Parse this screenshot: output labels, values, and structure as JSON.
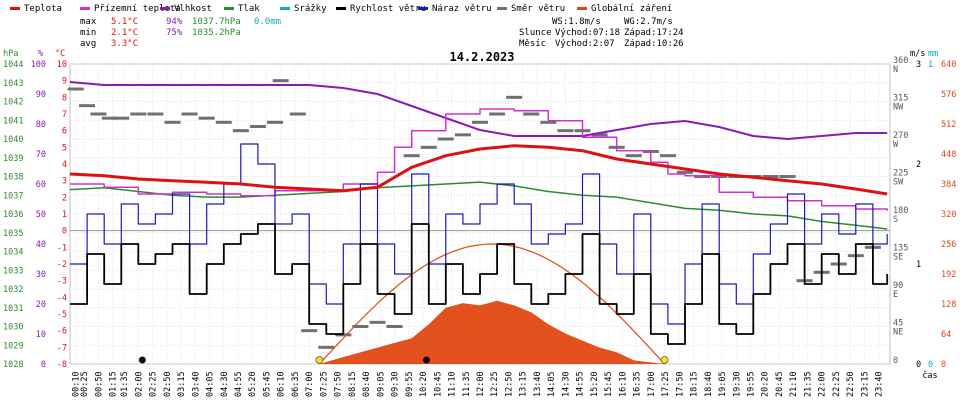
{
  "legend": [
    {
      "label": "Teplota",
      "color": "#dd1111"
    },
    {
      "label": "Přízemní teplota",
      "color": "#d030d0"
    },
    {
      "label": "Vlhkost",
      "color": "#8a19b6"
    },
    {
      "label": "Tlak",
      "color": "#2f8a2f"
    },
    {
      "label": "Srážky",
      "color": "#17a7c7"
    },
    {
      "label": "Rychlost větru",
      "color": "#000000"
    },
    {
      "label": "Náraz větru",
      "color": "#1a1ab4"
    },
    {
      "label": "Směr větru",
      "color": "#707070"
    },
    {
      "label": "Globální záření",
      "color": "#e04812"
    }
  ],
  "stats": {
    "max": {
      "label": "max",
      "temp": "5.1°C",
      "hum": "94%",
      "press": "1037.7hPa",
      "rain": "0.0mm"
    },
    "min": {
      "label": "min",
      "temp": "2.1°C",
      "hum": "75%",
      "press": "1035.2hPa"
    },
    "avg": {
      "label": "avg",
      "temp": "3.3°C"
    }
  },
  "wind_info": {
    "ws": "WS:1.8m/s",
    "wg": "WG:2.7m/s"
  },
  "sun_info": {
    "label": "Slunce",
    "rise": "Východ:07:18",
    "set": "Západ:17:24"
  },
  "moon_info": {
    "label": "Měsíc",
    "rise": "Východ:2:07",
    "set": "Západ:10:26"
  },
  "chart_data": {
    "type": "line",
    "title": "14.2.2023",
    "x_label": "čas",
    "x_ticks": [
      "00:10",
      "00:25",
      "00:50",
      "01:15",
      "01:35",
      "02:00",
      "02:25",
      "02:50",
      "03:15",
      "03:40",
      "04:05",
      "04:30",
      "04:55",
      "05:20",
      "05:45",
      "06:10",
      "06:35",
      "07:00",
      "07:25",
      "07:50",
      "08:15",
      "08:40",
      "09:05",
      "09:30",
      "09:55",
      "10:20",
      "10:45",
      "11:10",
      "11:35",
      "12:00",
      "12:25",
      "12:50",
      "13:15",
      "13:40",
      "14:05",
      "14:30",
      "14:55",
      "15:20",
      "15:45",
      "16:10",
      "16:35",
      "17:00",
      "17:25",
      "17:50",
      "18:15",
      "18:40",
      "19:05",
      "19:30",
      "19:55",
      "20:20",
      "20:45",
      "21:10",
      "21:35",
      "22:00",
      "22:25",
      "22:50",
      "23:15",
      "23:40"
    ],
    "axes": {
      "hpa": {
        "unit": "hPa",
        "min": 1028,
        "max": 1044,
        "ticks": [
          "1028",
          "1029",
          "1030",
          "1031",
          "1032",
          "1033",
          "1034",
          "1035",
          "1036",
          "1037",
          "1038",
          "1039",
          "1040",
          "1041",
          "1042",
          "1043",
          "1044"
        ]
      },
      "percent": {
        "unit": "%",
        "min": 0,
        "max": 100,
        "ticks": [
          "0",
          "10",
          "20",
          "30",
          "40",
          "50",
          "60",
          "70",
          "80",
          "90",
          "100"
        ]
      },
      "celsius": {
        "unit": "°C",
        "min": -8,
        "max": 10,
        "ticks": [
          "-8",
          "-7",
          "-6",
          "-5",
          "-4",
          "-3",
          "-2",
          "-1",
          "0",
          "1",
          "2",
          "3",
          "4",
          "5",
          "6",
          "7",
          "8",
          "9",
          "10"
        ]
      },
      "wind_dir": {
        "min": 0,
        "max": 360,
        "ticks": [
          "0",
          "45",
          "90",
          "135",
          "180",
          "225",
          "270",
          "315",
          "360"
        ],
        "names": [
          "",
          "NE",
          "E",
          "SE",
          "S",
          "SW",
          "W",
          "NW",
          "N"
        ]
      },
      "wind_speed": {
        "unit": "m/s",
        "min": 0,
        "max": 3,
        "ticks": [
          "0",
          "1",
          "2",
          "3"
        ]
      },
      "rain": {
        "unit": "mm",
        "min": 0,
        "max": 1,
        "ticks": [
          "0",
          "1"
        ]
      },
      "radiation": {
        "min": 0,
        "max": 640,
        "ticks": [
          "0",
          "64",
          "128",
          "192",
          "256",
          "320",
          "384",
          "448",
          "512",
          "576",
          "640"
        ]
      }
    },
    "series": [
      {
        "name": "Teplota",
        "unit": "°C",
        "color": "#dd1111",
        "x": [
          "00:00",
          "01:00",
          "02:00",
          "03:00",
          "04:00",
          "05:00",
          "06:00",
          "07:00",
          "08:00",
          "09:00",
          "10:00",
          "11:00",
          "12:00",
          "13:00",
          "14:00",
          "15:00",
          "16:00",
          "17:00",
          "18:00",
          "19:00",
          "20:00",
          "21:00",
          "22:00",
          "23:00",
          "23:55"
        ],
        "values": [
          3.4,
          3.3,
          3.1,
          3.0,
          2.9,
          2.8,
          2.6,
          2.5,
          2.4,
          2.6,
          3.8,
          4.5,
          4.9,
          5.1,
          5.0,
          4.8,
          4.3,
          4.0,
          3.7,
          3.4,
          3.2,
          3.0,
          2.8,
          2.5,
          2.2
        ]
      },
      {
        "name": "Přízemní teplota",
        "unit": "°C",
        "color": "#d030d0",
        "x": [
          "00:00",
          "01:00",
          "02:00",
          "03:00",
          "04:00",
          "05:00",
          "06:00",
          "07:00",
          "08:00",
          "09:00",
          "09:30",
          "10:00",
          "11:00",
          "12:00",
          "13:00",
          "14:00",
          "15:00",
          "16:00",
          "17:00",
          "17:30",
          "18:00",
          "19:00",
          "20:00",
          "21:00",
          "22:00",
          "23:00",
          "23:55"
        ],
        "values": [
          2.8,
          2.6,
          2.2,
          2.3,
          2.2,
          2.1,
          2.4,
          2.4,
          2.8,
          3.5,
          5.0,
          6.0,
          7.0,
          7.3,
          7.2,
          6.6,
          5.6,
          4.8,
          4.1,
          3.4,
          3.3,
          2.3,
          2.0,
          1.8,
          1.5,
          1.3,
          1.2
        ]
      },
      {
        "name": "Vlhkost",
        "unit": "%",
        "color": "#8a19b6",
        "x": [
          "00:00",
          "01:00",
          "02:00",
          "03:00",
          "04:00",
          "05:00",
          "06:00",
          "07:00",
          "08:00",
          "09:00",
          "10:00",
          "11:00",
          "12:00",
          "13:00",
          "14:00",
          "15:00",
          "16:00",
          "17:00",
          "18:00",
          "19:00",
          "20:00",
          "21:00",
          "22:00",
          "23:00",
          "23:55"
        ],
        "values": [
          94,
          93,
          93,
          93,
          93,
          93,
          93,
          93,
          92,
          90,
          86,
          82,
          78,
          76,
          76,
          76,
          78,
          80,
          81,
          79,
          76,
          75,
          76,
          77,
          77
        ]
      },
      {
        "name": "Tlak",
        "unit": "hPa",
        "color": "#2f8a2f",
        "x": [
          "00:00",
          "01:00",
          "02:00",
          "03:00",
          "04:00",
          "05:00",
          "06:00",
          "07:00",
          "08:00",
          "09:00",
          "10:00",
          "11:00",
          "12:00",
          "13:00",
          "14:00",
          "15:00",
          "16:00",
          "17:00",
          "18:00",
          "19:00",
          "20:00",
          "21:00",
          "22:00",
          "23:00",
          "23:55"
        ],
        "values": [
          1037.3,
          1037.4,
          1037.2,
          1037.0,
          1036.9,
          1036.9,
          1037.0,
          1037.1,
          1037.2,
          1037.4,
          1037.5,
          1037.6,
          1037.7,
          1037.5,
          1037.2,
          1037.0,
          1036.9,
          1036.6,
          1036.3,
          1036.2,
          1036.0,
          1035.9,
          1035.6,
          1035.4,
          1035.2
        ]
      },
      {
        "name": "Globální záření",
        "unit": "W/m2",
        "color": "#e04812",
        "kind": "area",
        "x": [
          "07:18",
          "08:00",
          "09:00",
          "10:00",
          "10:30",
          "11:00",
          "11:30",
          "12:00",
          "12:30",
          "13:00",
          "13:30",
          "14:00",
          "14:30",
          "15:00",
          "15:30",
          "16:00",
          "16:30",
          "17:24"
        ],
        "values": [
          0,
          15,
          35,
          55,
          85,
          120,
          130,
          125,
          135,
          125,
          110,
          85,
          65,
          50,
          35,
          25,
          8,
          0
        ]
      },
      {
        "name": "Rychlost větru",
        "unit": "m/s",
        "color": "#000000",
        "x": [
          "00:00",
          "00:30",
          "01:00",
          "01:30",
          "02:00",
          "02:30",
          "03:00",
          "03:30",
          "04:00",
          "04:30",
          "05:00",
          "05:30",
          "06:00",
          "06:30",
          "07:00",
          "07:30",
          "08:00",
          "08:30",
          "09:00",
          "09:30",
          "10:00",
          "10:30",
          "11:00",
          "11:30",
          "12:00",
          "12:30",
          "13:00",
          "13:30",
          "14:00",
          "14:30",
          "15:00",
          "15:30",
          "16:00",
          "16:30",
          "17:00",
          "17:30",
          "18:00",
          "18:30",
          "19:00",
          "19:30",
          "20:00",
          "20:30",
          "21:00",
          "21:30",
          "22:00",
          "22:30",
          "23:00",
          "23:30",
          "23:55"
        ],
        "values": [
          0.6,
          1.1,
          0.8,
          1.2,
          1.0,
          1.1,
          1.2,
          0.7,
          1.0,
          1.2,
          1.3,
          1.4,
          0.9,
          1.0,
          0.4,
          0.3,
          0.8,
          1.2,
          0.7,
          0.5,
          1.4,
          0.6,
          1.0,
          0.7,
          0.9,
          1.2,
          0.8,
          0.6,
          0.7,
          0.9,
          1.3,
          0.6,
          0.5,
          0.9,
          0.3,
          0.2,
          0.6,
          1.1,
          0.4,
          0.3,
          0.7,
          1.0,
          1.2,
          0.8,
          1.1,
          0.9,
          1.2,
          0.8,
          0.9
        ]
      },
      {
        "name": "Náraz větru",
        "unit": "m/s",
        "color": "#1a1ab4",
        "x": [
          "00:00",
          "00:30",
          "01:00",
          "01:30",
          "02:00",
          "02:30",
          "03:00",
          "03:30",
          "04:00",
          "04:30",
          "05:00",
          "05:30",
          "06:00",
          "06:30",
          "07:00",
          "07:30",
          "08:00",
          "08:30",
          "09:00",
          "09:30",
          "10:00",
          "10:30",
          "11:00",
          "11:30",
          "12:00",
          "12:30",
          "13:00",
          "13:30",
          "14:00",
          "14:30",
          "15:00",
          "15:30",
          "16:00",
          "16:30",
          "17:00",
          "17:30",
          "18:00",
          "18:30",
          "19:00",
          "19:30",
          "20:00",
          "20:30",
          "21:00",
          "21:30",
          "22:00",
          "22:30",
          "23:00",
          "23:30",
          "23:55"
        ],
        "values": [
          1.0,
          1.5,
          1.2,
          1.6,
          1.4,
          1.5,
          1.7,
          1.2,
          1.6,
          1.8,
          2.2,
          2.0,
          1.4,
          1.5,
          0.8,
          0.6,
          1.2,
          1.8,
          1.2,
          0.9,
          1.9,
          1.0,
          1.5,
          1.4,
          1.6,
          1.8,
          1.6,
          1.2,
          1.3,
          1.4,
          1.9,
          1.2,
          0.9,
          1.5,
          0.6,
          0.4,
          1.0,
          1.6,
          0.8,
          0.6,
          1.1,
          1.4,
          1.7,
          1.2,
          1.5,
          1.3,
          1.6,
          1.2,
          1.3
        ]
      },
      {
        "name": "Směr větru",
        "unit": "°",
        "color": "#707070",
        "kind": "scatter",
        "x": [
          "00:10",
          "00:30",
          "00:50",
          "01:10",
          "01:30",
          "02:00",
          "02:30",
          "03:00",
          "03:30",
          "04:00",
          "04:30",
          "05:00",
          "05:30",
          "06:00",
          "06:10",
          "06:40",
          "07:00",
          "07:30",
          "08:00",
          "08:30",
          "09:00",
          "09:30",
          "10:00",
          "10:30",
          "11:00",
          "11:30",
          "12:00",
          "12:30",
          "13:00",
          "13:30",
          "14:00",
          "14:30",
          "15:00",
          "15:30",
          "16:00",
          "16:30",
          "17:00",
          "17:30",
          "18:00",
          "18:30",
          "19:00",
          "19:30",
          "20:00",
          "20:30",
          "21:00",
          "21:30",
          "22:00",
          "22:30",
          "23:00",
          "23:30"
        ],
        "values": [
          330,
          310,
          300,
          295,
          295,
          300,
          300,
          290,
          300,
          295,
          290,
          280,
          285,
          290,
          340,
          300,
          40,
          20,
          35,
          45,
          50,
          45,
          250,
          260,
          270,
          275,
          290,
          300,
          320,
          300,
          290,
          280,
          280,
          275,
          260,
          250,
          255,
          250,
          230,
          225,
          225,
          225,
          225,
          225,
          225,
          100,
          110,
          120,
          130,
          140
        ]
      }
    ],
    "markers": {
      "sun": [
        "07:18",
        "17:24"
      ],
      "moon": [
        "02:07",
        "10:26"
      ]
    }
  }
}
